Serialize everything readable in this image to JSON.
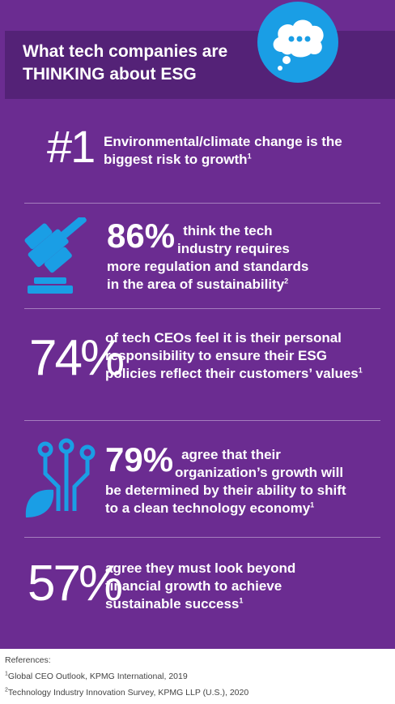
{
  "header": {
    "title_line1": "What tech companies are",
    "title_line2": "THINKING about ESG"
  },
  "stats": [
    {
      "value": "#1",
      "text": "Environmental/climate change is the biggest risk to growth",
      "ref": "1"
    },
    {
      "value": "86%",
      "text_inline": "think the tech",
      "text_rest1": "industry requires",
      "text_rest2": "more regulation and standards",
      "text_rest3": "in the area of sustainability",
      "ref": "2"
    },
    {
      "value": "74%",
      "text": "of tech CEOs feel it is their personal responsibility to ensure their ESG policies reflect their customers’ values",
      "ref": "1"
    },
    {
      "value": "79%",
      "text_inline": "agree that their",
      "text_rest1": "organization’s growth will",
      "text_rest2": "be determined by their ability to shift",
      "text_rest3": "to a clean technology economy",
      "ref": "1"
    },
    {
      "value": "57%",
      "text": "agree they must look beyond financial growth to achieve sustainable success",
      "ref": "1"
    }
  ],
  "references": {
    "heading": "References:",
    "items": [
      {
        "num": "1",
        "text": "Global CEO Outlook, KPMG International, 2019"
      },
      {
        "num": "2",
        "text": "Technology Industry Innovation Survey, KPMG LLP (U.S.), 2020"
      }
    ]
  },
  "colors": {
    "panel": "#6b2c91",
    "header": "#542277",
    "accent": "#1a9ee5"
  },
  "icons": [
    "thought-bubble-icon",
    "gavel-icon",
    "circuit-leaf-icon"
  ]
}
